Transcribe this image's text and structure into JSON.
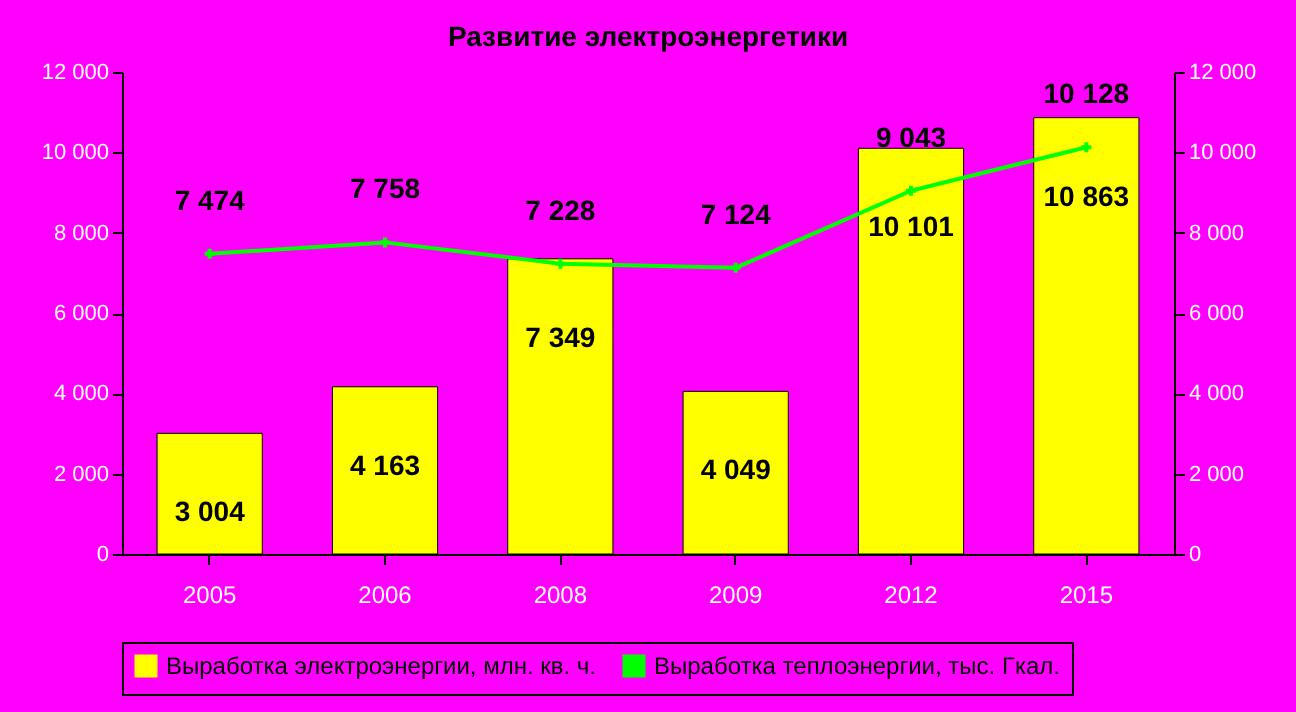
{
  "chart_data": {
    "type": "bar",
    "title": "Развитие электроэнергетики",
    "categories": [
      "2005",
      "2006",
      "2008",
      "2009",
      "2012",
      "2015"
    ],
    "series": [
      {
        "name": "Выработка электроэнергии, млн. кв. ч.",
        "color": "#ffff00",
        "values": [
          3004,
          4163,
          7349,
          4049,
          10101,
          10863
        ],
        "value_labels": [
          "3 004",
          "4 163",
          "7 349",
          "4 049",
          "10 101",
          "10 863"
        ]
      },
      {
        "name": "Выработка теплоэнергии, тыс. Гкал.",
        "type": "line",
        "axis": "y2",
        "color": "#00ff00",
        "marker": "cross",
        "values": [
          7474,
          7758,
          7228,
          7124,
          9043,
          10128
        ],
        "value_labels": [
          "7 474",
          "7 758",
          "7 228",
          "7 124",
          "9 043",
          "10 128"
        ]
      }
    ],
    "ylim": [
      0,
      12000
    ],
    "yticks": [
      {
        "value": 0,
        "label": "0"
      },
      {
        "value": 2000,
        "label": "2 000"
      },
      {
        "value": 4000,
        "label": "4 000"
      },
      {
        "value": 6000,
        "label": "6 000"
      },
      {
        "value": 8000,
        "label": "8 000"
      },
      {
        "value": 10000,
        "label": "10 000"
      },
      {
        "value": 12000,
        "label": "12 000"
      }
    ],
    "y2lim": [
      0,
      12000
    ],
    "y2ticks": [
      {
        "value": 0,
        "label": "0"
      },
      {
        "value": 2000,
        "label": "2 000"
      },
      {
        "value": 4000,
        "label": "4 000"
      },
      {
        "value": 6000,
        "label": "6 000"
      },
      {
        "value": 8000,
        "label": "8 000"
      },
      {
        "value": 10000,
        "label": "10 000"
      },
      {
        "value": 12000,
        "label": "12 000"
      }
    ],
    "legend": "bottom",
    "grid": false
  }
}
